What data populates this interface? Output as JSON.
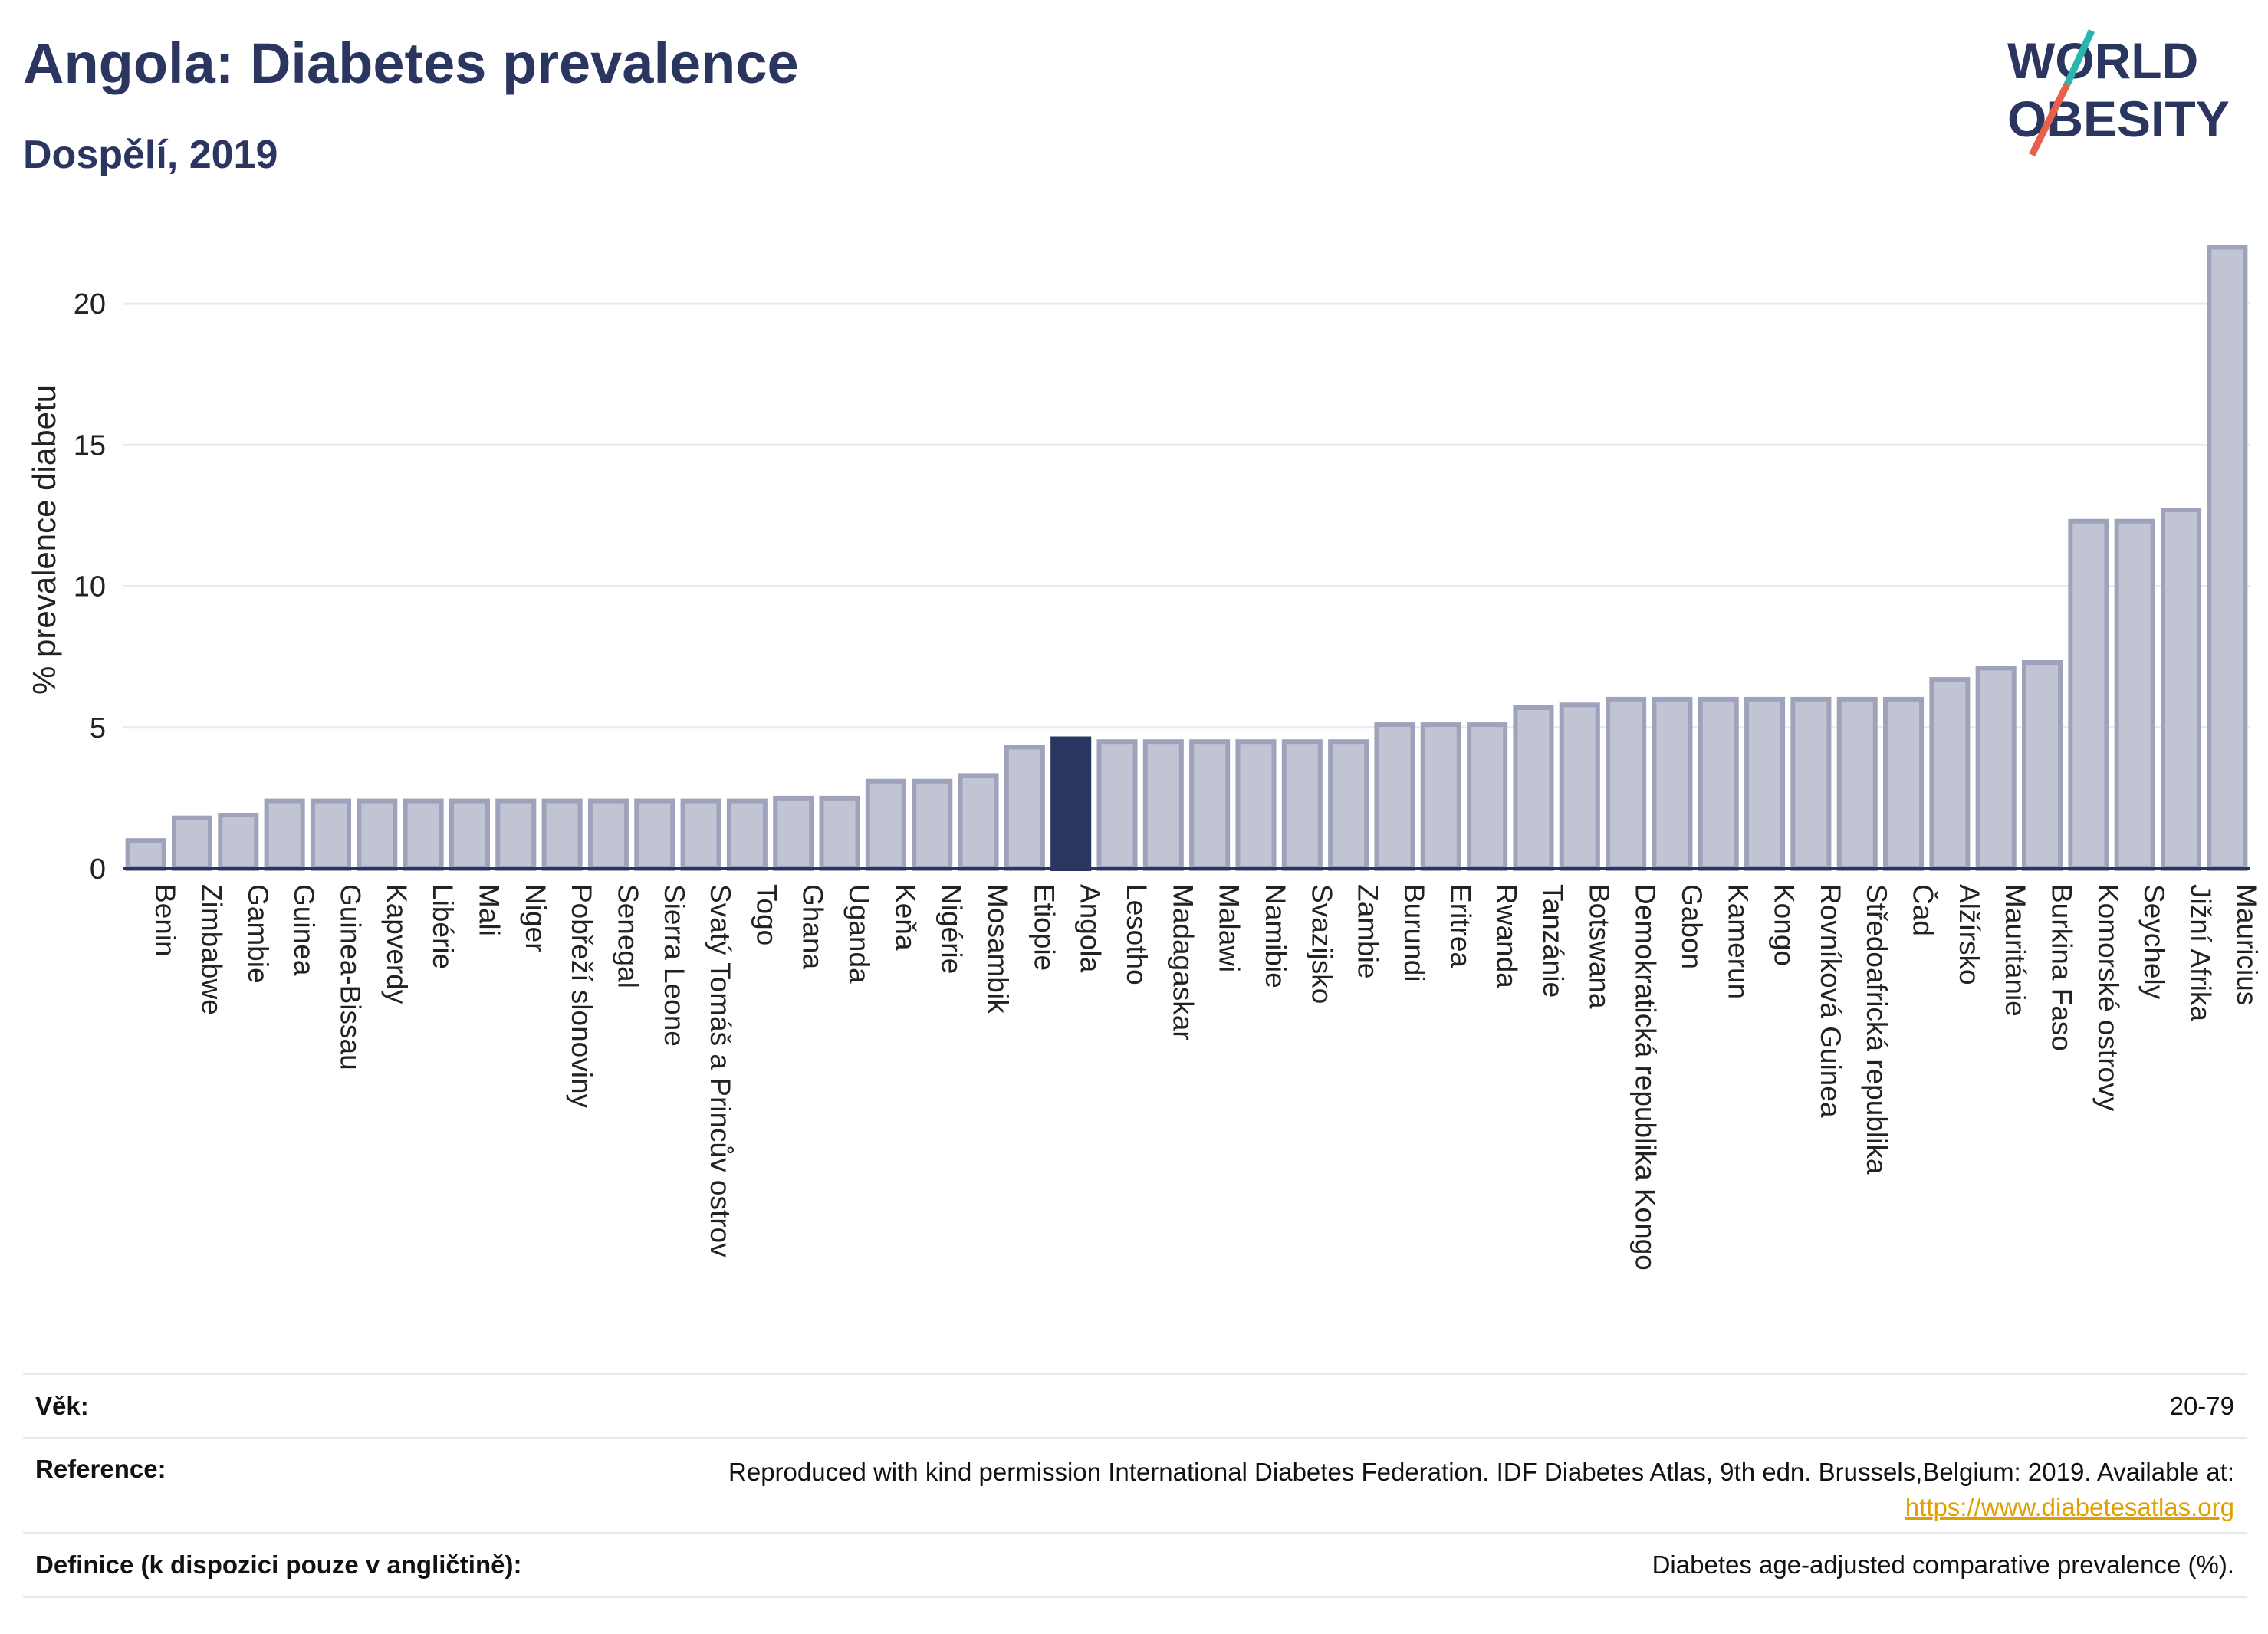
{
  "header": {
    "title": "Angola: Diabetes prevalence",
    "subtitle": "Dospělí, 2019"
  },
  "logo": {
    "line1": "WORLD",
    "line2": "OBESITY",
    "accent_teal": "#2cb5b0",
    "accent_red": "#e8604c"
  },
  "colors": {
    "bar": "#c0c4d3",
    "bar_border": "#9ea3bb",
    "highlight": "#2a3560",
    "grid": "#e8eaef",
    "axis": "#2a3560"
  },
  "chart_data": {
    "type": "bar",
    "title": "Angola: Diabetes prevalence",
    "subtitle": "Dospělí, 2019",
    "ylabel": "% prevalence diabetu",
    "xlabel": "",
    "ylim": [
      0,
      22.2
    ],
    "yticks": [
      0,
      5,
      10,
      15,
      20
    ],
    "grid": true,
    "highlight": "Angola",
    "categories": [
      "Benin",
      "Zimbabwe",
      "Gambie",
      "Guinea",
      "Guinea-Bissau",
      "Kapverdy",
      "Libérie",
      "Mali",
      "Niger",
      "Pobřeží slonoviny",
      "Senegal",
      "Sierra Leone",
      "Svatý Tomáš a Princův ostrov",
      "Togo",
      "Ghana",
      "Uganda",
      "Keňa",
      "Nigérie",
      "Mosambik",
      "Etiopie",
      "Angola",
      "Lesotho",
      "Madagaskar",
      "Malawi",
      "Namibie",
      "Svazijsko",
      "Zambie",
      "Burundi",
      "Eritrea",
      "Rwanda",
      "Tanzánie",
      "Botswana",
      "Demokratická republika Kongo",
      "Gabon",
      "Kamerun",
      "Kongo",
      "Rovníková Guinea",
      "Středoafrická republika",
      "Čad",
      "Alžírsko",
      "Mauritánie",
      "Burkina Faso",
      "Komorské ostrovy",
      "Seychely",
      "Jižní Afrika",
      "Mauricius"
    ],
    "values": [
      1.0,
      1.8,
      1.9,
      2.4,
      2.4,
      2.4,
      2.4,
      2.4,
      2.4,
      2.4,
      2.4,
      2.4,
      2.4,
      2.4,
      2.5,
      2.5,
      3.1,
      3.1,
      3.3,
      4.3,
      4.6,
      4.5,
      4.5,
      4.5,
      4.5,
      4.5,
      4.5,
      5.1,
      5.1,
      5.1,
      5.7,
      5.8,
      6.0,
      6.0,
      6.0,
      6.0,
      6.0,
      6.0,
      6.0,
      6.7,
      7.1,
      7.3,
      12.3,
      12.3,
      12.7,
      22.0
    ]
  },
  "info": {
    "age_label": "Věk:",
    "age_value": "20-79",
    "reference_label": "Reference:",
    "reference_text": "Reproduced with kind permission International Diabetes Federation. IDF Diabetes Atlas, 9th edn. Brussels,Belgium: 2019. Available at:",
    "reference_link": "https://www.diabetesatlas.org",
    "definition_label": "Definice (k dispozici pouze v angličtině):",
    "definition_value": "Diabetes age-adjusted comparative prevalence (%)."
  }
}
